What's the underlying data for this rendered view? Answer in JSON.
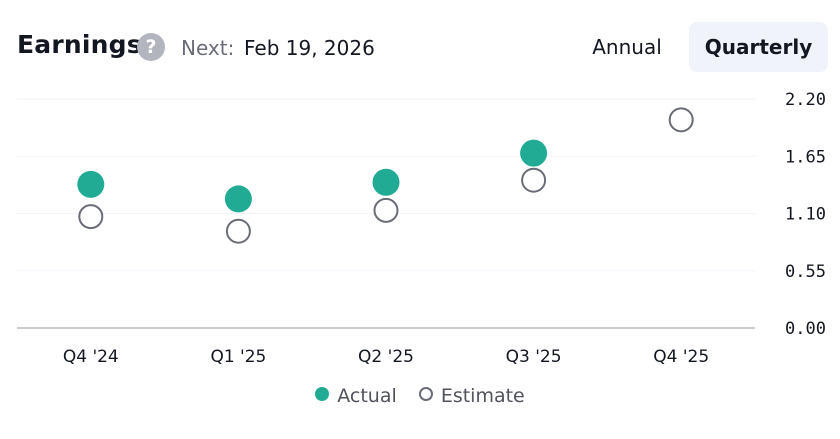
{
  "header": {
    "title": "Earnings",
    "help_icon": "?",
    "next_label": "Next:",
    "next_date": "Feb 19, 2026",
    "toggle_annual": "Annual",
    "toggle_quarterly": "Quarterly",
    "selected": "Quarterly"
  },
  "chart_data": {
    "type": "scatter",
    "categories": [
      "Q4 '24",
      "Q1 '25",
      "Q2 '25",
      "Q3 '25",
      "Q4 '25"
    ],
    "series": [
      {
        "name": "Actual",
        "values": [
          1.38,
          1.24,
          1.4,
          1.68,
          null
        ],
        "color": "#22ab94",
        "marker": "filled"
      },
      {
        "name": "Estimate",
        "values": [
          1.07,
          0.93,
          1.13,
          1.42,
          2.0
        ],
        "color": "#6a6d78",
        "marker": "hollow"
      }
    ],
    "y_ticks": [
      "2.20",
      "1.65",
      "1.10",
      "0.55",
      "0.00"
    ],
    "ylim": [
      0,
      2.2
    ],
    "grid": true,
    "legend": "bottom-center"
  }
}
